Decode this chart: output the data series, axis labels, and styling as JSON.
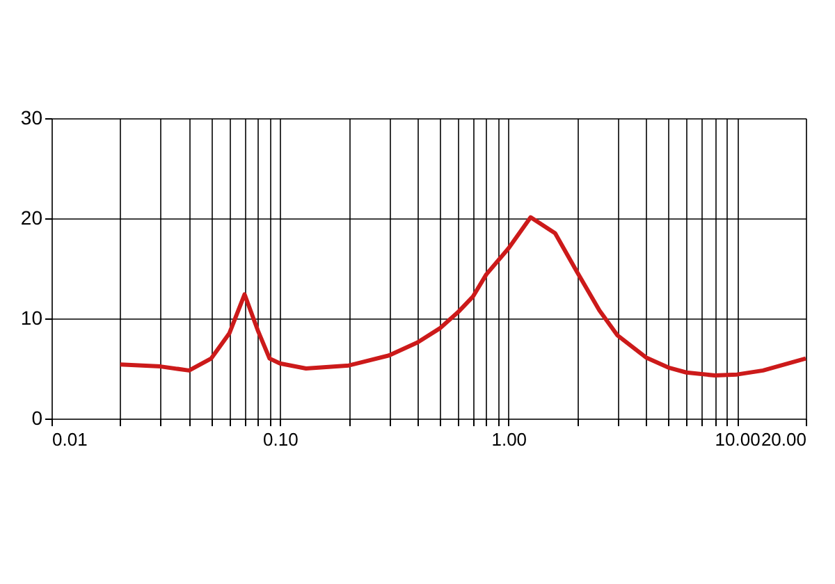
{
  "chart_data": {
    "type": "line",
    "log": "x",
    "x": [
      0.02,
      0.03,
      0.04,
      0.05,
      0.06,
      0.07,
      0.08,
      0.09,
      0.1,
      0.13,
      0.2,
      0.3,
      0.4,
      0.5,
      0.6,
      0.7,
      0.8,
      1.0,
      1.25,
      1.6,
      2,
      2.5,
      3,
      4,
      5,
      6,
      8,
      10,
      13,
      20
    ],
    "series": [
      {
        "color": "#cc1a1a",
        "values": [
          5.4,
          5.2,
          4.8,
          6.0,
          8.5,
          12.4,
          8.8,
          6.0,
          5.5,
          5.0,
          5.3,
          6.3,
          7.6,
          9.0,
          10.6,
          12.2,
          14.4,
          17.0,
          20.1,
          18.5,
          14.6,
          10.8,
          8.3,
          6.1,
          5.1,
          4.6,
          4.3,
          4.4,
          4.8,
          6.0
        ]
      }
    ],
    "xlim": [
      0.01,
      20
    ],
    "ylim": [
      0,
      30
    ],
    "xticks": [
      {
        "value": 0.01,
        "label": "0.01"
      },
      {
        "value": 0.02,
        "label": null
      },
      {
        "value": 0.03,
        "label": null
      },
      {
        "value": 0.04,
        "label": null
      },
      {
        "value": 0.05,
        "label": null
      },
      {
        "value": 0.06,
        "label": null
      },
      {
        "value": 0.07,
        "label": null
      },
      {
        "value": 0.08,
        "label": null
      },
      {
        "value": 0.09,
        "label": null
      },
      {
        "value": 0.1,
        "label": "0.10"
      },
      {
        "value": 0.2,
        "label": null
      },
      {
        "value": 0.3,
        "label": null
      },
      {
        "value": 0.4,
        "label": null
      },
      {
        "value": 0.5,
        "label": null
      },
      {
        "value": 0.6,
        "label": null
      },
      {
        "value": 0.7,
        "label": null
      },
      {
        "value": 0.8,
        "label": null
      },
      {
        "value": 0.9,
        "label": null
      },
      {
        "value": 1,
        "label": "1.00"
      },
      {
        "value": 2,
        "label": null
      },
      {
        "value": 3,
        "label": null
      },
      {
        "value": 4,
        "label": null
      },
      {
        "value": 5,
        "label": null
      },
      {
        "value": 6,
        "label": null
      },
      {
        "value": 7,
        "label": null
      },
      {
        "value": 8,
        "label": null
      },
      {
        "value": 9,
        "label": null
      },
      {
        "value": 10,
        "label": "10.00"
      },
      {
        "value": 20,
        "label": "20.00"
      }
    ],
    "yticks": [
      0,
      10,
      20,
      30
    ],
    "grid": true,
    "marker": "none",
    "line_style": "solid"
  }
}
